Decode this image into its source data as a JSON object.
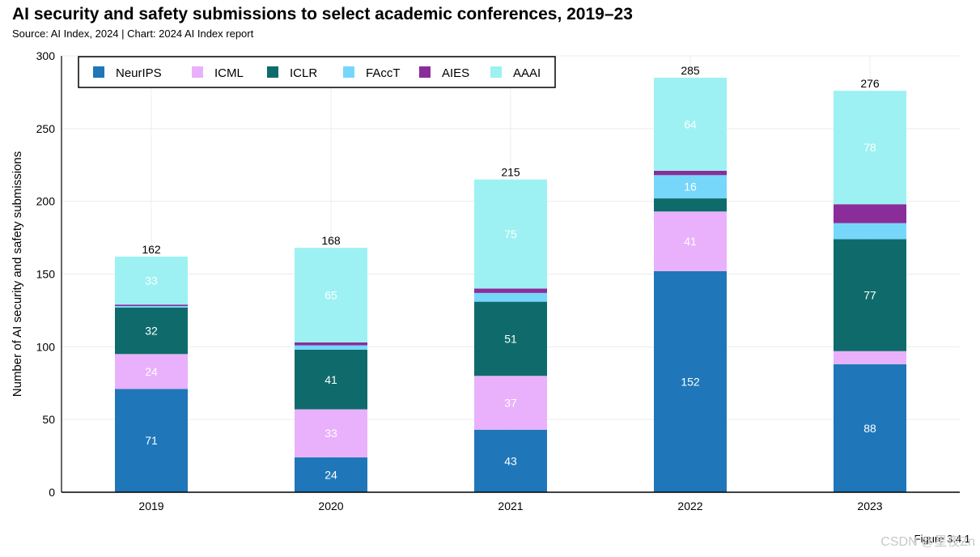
{
  "title": "AI security and safety submissions to select academic conferences, 2019–23",
  "subtitle": "Source: AI Index, 2024 | Chart: 2024 AI Index report",
  "figure_label": "Figure 3.4.1",
  "watermark": "CSDN @星夜Zn",
  "chart_data": {
    "type": "bar",
    "stacked": true,
    "categories": [
      "2019",
      "2020",
      "2021",
      "2022",
      "2023"
    ],
    "ylabel": "Number of AI security and safety submissions",
    "xlabel": "",
    "ylim": [
      0,
      300
    ],
    "yticks": [
      0,
      50,
      100,
      150,
      200,
      250,
      300
    ],
    "grid": true,
    "legend_position": "top-left",
    "series": [
      {
        "name": "NeurIPS",
        "color": "#1f77b9",
        "label_color": "#ffffff",
        "values": [
          71,
          24,
          43,
          152,
          88
        ],
        "labels": [
          "71",
          "24",
          "43",
          "152",
          "88"
        ]
      },
      {
        "name": "ICML",
        "color": "#e9b1fb",
        "label_color": "#ffffff",
        "values": [
          24,
          33,
          37,
          41,
          9
        ],
        "labels": [
          "24",
          "33",
          "37",
          "41",
          ""
        ]
      },
      {
        "name": "ICLR",
        "color": "#0f6b6b",
        "label_color": "#ffffff",
        "values": [
          32,
          41,
          51,
          9,
          77
        ],
        "labels": [
          "32",
          "41",
          "51",
          "",
          "77"
        ]
      },
      {
        "name": "FAccT",
        "color": "#76d7fb",
        "label_color": "#ffffff",
        "values": [
          1,
          3,
          6,
          16,
          11
        ],
        "labels": [
          "",
          "",
          "",
          "16",
          ""
        ]
      },
      {
        "name": "AIES",
        "color": "#8a2d9a",
        "label_color": "#ffffff",
        "values": [
          1,
          2,
          3,
          3,
          13
        ],
        "labels": [
          "",
          "",
          "",
          "",
          ""
        ]
      },
      {
        "name": "AAAI",
        "color": "#9df1f2",
        "label_color": "#ffffff",
        "values": [
          33,
          65,
          75,
          64,
          78
        ],
        "labels": [
          "33",
          "65",
          "75",
          "64",
          "78"
        ]
      }
    ],
    "totals": [
      "162",
      "168",
      "215",
      "285",
      "276"
    ]
  }
}
